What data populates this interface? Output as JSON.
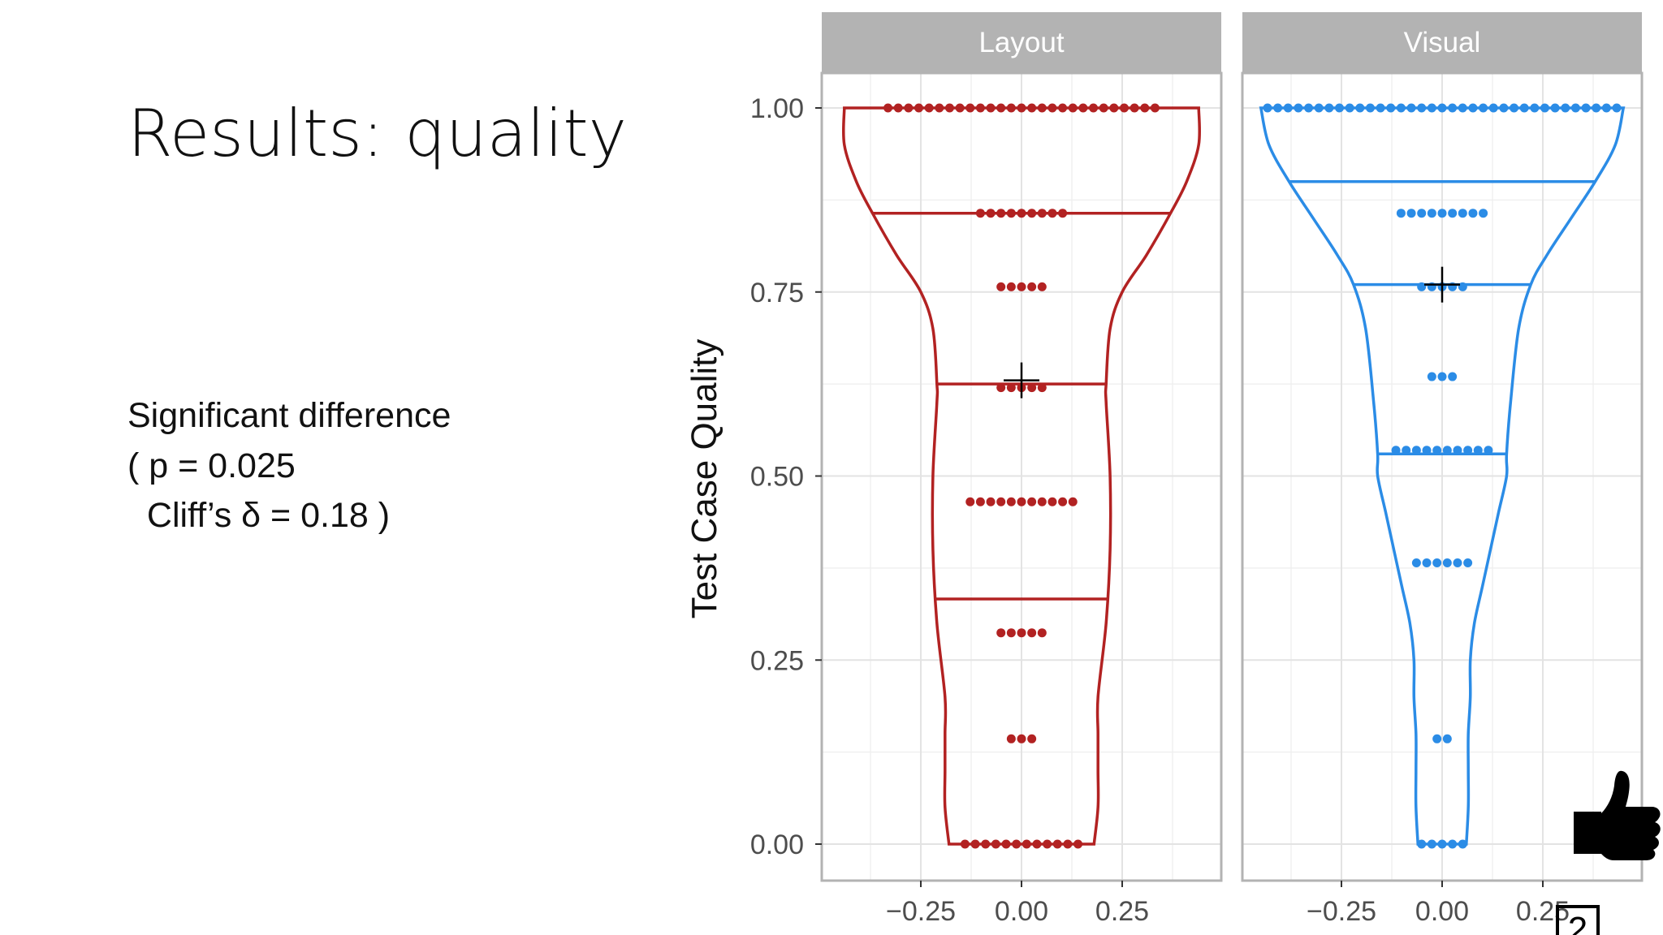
{
  "slide": {
    "title": "Results: quality",
    "significance": {
      "heading": "Significant difference",
      "p_line": "( p = 0.025",
      "cliff_line": "  Cliff’s δ = 0.18 )"
    },
    "corner_icon": "thumbs-up-icon",
    "corner_page_fragment": "2"
  },
  "chart_data": {
    "type": "violin",
    "ylabel": "Test Case Quality",
    "ylim": [
      0,
      1
    ],
    "y_ticks": [
      0,
      0.25,
      0.5,
      0.75,
      1.0
    ],
    "y_tick_labels": [
      "0.00",
      "0.25",
      "0.50",
      "0.75",
      "1.00"
    ],
    "x_ticks": [
      -0.25,
      0,
      0.25
    ],
    "x_tick_labels": [
      "−0.25",
      "0.00",
      "0.25"
    ],
    "xlim": [
      -0.5,
      0.5
    ],
    "grid": true,
    "panels": [
      {
        "name": "Layout",
        "color": "#b22222",
        "quantiles": [
          0.333,
          0.625,
          0.857
        ],
        "mean": 0.63,
        "violin_halfwidth": [
          [
            0,
            0.18
          ],
          [
            0.05,
            0.19
          ],
          [
            0.1,
            0.19
          ],
          [
            0.15,
            0.19
          ],
          [
            0.2,
            0.19
          ],
          [
            0.3,
            0.21
          ],
          [
            0.4,
            0.22
          ],
          [
            0.5,
            0.22
          ],
          [
            0.6,
            0.21
          ],
          [
            0.625,
            0.21
          ],
          [
            0.7,
            0.22
          ],
          [
            0.75,
            0.25
          ],
          [
            0.8,
            0.31
          ],
          [
            0.857,
            0.37
          ],
          [
            0.9,
            0.41
          ],
          [
            0.95,
            0.44
          ],
          [
            1.0,
            0.44
          ]
        ],
        "dots": [
          {
            "y": 1.0,
            "n": 27
          },
          {
            "y": 0.857,
            "n": 9
          },
          {
            "y": 0.757,
            "n": 5
          },
          {
            "y": 0.62,
            "n": 5
          },
          {
            "y": 0.465,
            "n": 11
          },
          {
            "y": 0.287,
            "n": 5
          },
          {
            "y": 0.143,
            "n": 3
          },
          {
            "y": 0.0,
            "n": 12
          }
        ]
      },
      {
        "name": "Visual",
        "color": "#2b8ce6",
        "quantiles": [
          0.53,
          0.76,
          0.9
        ],
        "mean": 0.76,
        "violin_halfwidth": [
          [
            0,
            0.06
          ],
          [
            0.05,
            0.065
          ],
          [
            0.1,
            0.065
          ],
          [
            0.15,
            0.065
          ],
          [
            0.2,
            0.07
          ],
          [
            0.25,
            0.07
          ],
          [
            0.3,
            0.08
          ],
          [
            0.35,
            0.1
          ],
          [
            0.4,
            0.12
          ],
          [
            0.45,
            0.14
          ],
          [
            0.5,
            0.16
          ],
          [
            0.53,
            0.16
          ],
          [
            0.6,
            0.17
          ],
          [
            0.7,
            0.19
          ],
          [
            0.76,
            0.22
          ],
          [
            0.8,
            0.26
          ],
          [
            0.85,
            0.32
          ],
          [
            0.9,
            0.38
          ],
          [
            0.95,
            0.43
          ],
          [
            1.0,
            0.45
          ]
        ],
        "dots": [
          {
            "y": 1.0,
            "n": 35
          },
          {
            "y": 0.857,
            "n": 9
          },
          {
            "y": 0.757,
            "n": 5
          },
          {
            "y": 0.635,
            "n": 3
          },
          {
            "y": 0.535,
            "n": 10
          },
          {
            "y": 0.382,
            "n": 6
          },
          {
            "y": 0.143,
            "n": 2
          },
          {
            "y": 0.0,
            "n": 5
          }
        ]
      }
    ]
  }
}
